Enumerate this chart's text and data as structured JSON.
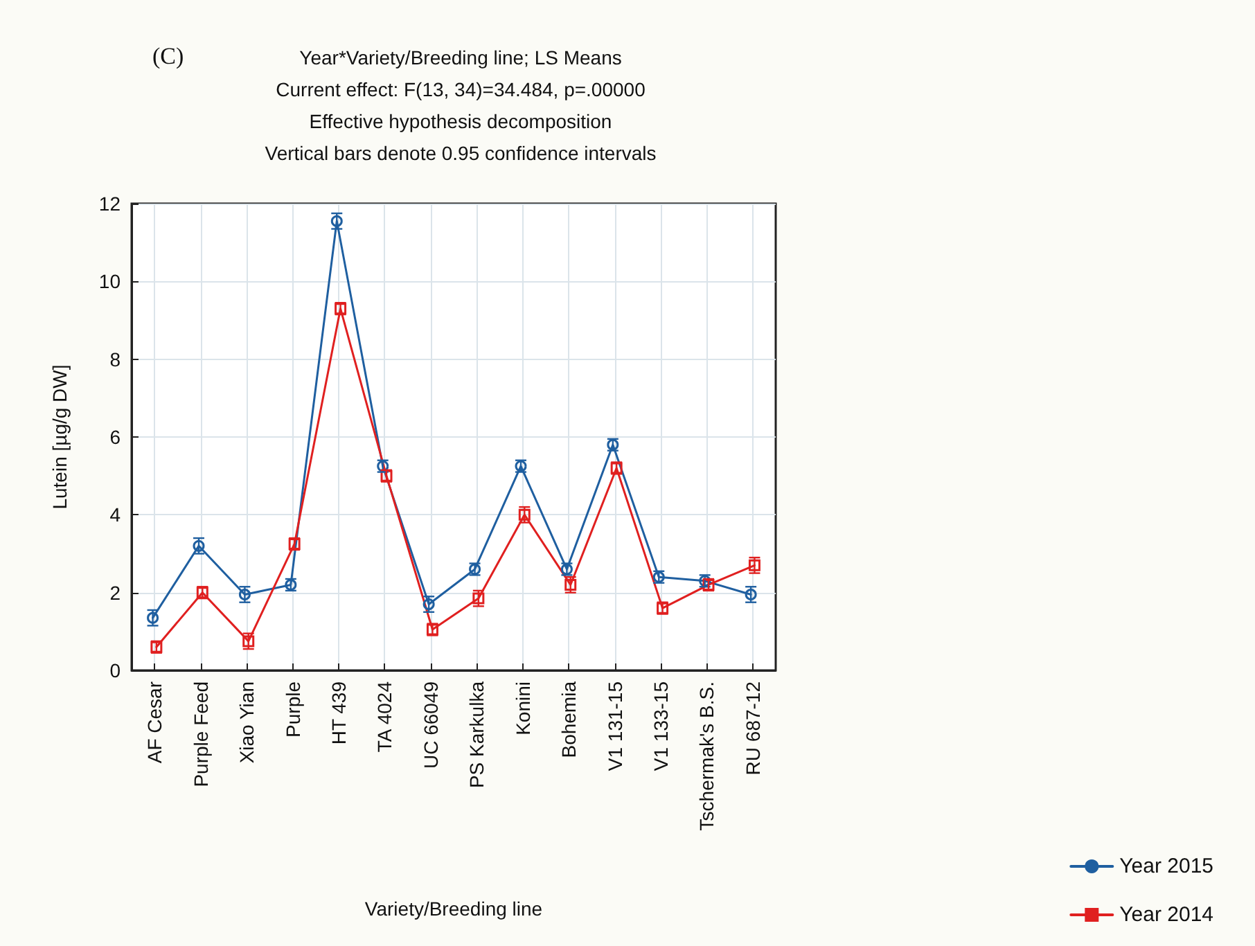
{
  "chart_data": {
    "type": "line",
    "title": "Year*Variety/Breeding line; LS Means",
    "subtitle": "Current effect: F(13, 34)=34.484, p=.00000\nEffective hypothesis decomposition\nVertical bars denote 0.95 confidence intervals",
    "xlabel": "Variety/Breeding line",
    "ylabel": "Lutein [µg/g DW]",
    "annotations": [
      "(C)"
    ],
    "categories": [
      "AF Cesar",
      "Purple Feed",
      "Xiao Yian",
      "Purple",
      "HT 439",
      "TA 4024",
      "UC 66049",
      "PS Karkulka",
      "Konini",
      "Bohemia",
      "V1 131-15",
      "V1 133-15",
      "Tschermak's B.S.",
      "RU 687-12"
    ],
    "series": [
      {
        "name": "Year 2015",
        "color": "#1f5fa0",
        "marker": "circle",
        "values": [
          1.35,
          3.2,
          1.95,
          2.2,
          11.55,
          5.25,
          1.7,
          2.6,
          5.25,
          2.6,
          5.8,
          2.4,
          2.3,
          1.95
        ],
        "errors": [
          0.2,
          0.2,
          0.2,
          0.15,
          0.2,
          0.15,
          0.2,
          0.15,
          0.15,
          0.15,
          0.15,
          0.15,
          0.15,
          0.2
        ]
      },
      {
        "name": "Year 2014",
        "color": "#e02020",
        "marker": "square",
        "values": [
          0.6,
          2.0,
          0.75,
          3.25,
          9.3,
          5.0,
          1.05,
          1.85,
          4.0,
          2.2,
          5.2,
          1.6,
          2.2,
          2.7
        ],
        "errors": [
          0.15,
          0.15,
          0.2,
          0.15,
          0.15,
          0.15,
          0.15,
          0.2,
          0.2,
          0.2,
          0.15,
          0.15,
          0.15,
          0.2
        ]
      }
    ],
    "ylim": [
      0,
      12
    ],
    "yticks": [
      0,
      2,
      4,
      6,
      8,
      10,
      12
    ],
    "grid": true,
    "legend": "bottom right",
    "line_style": "solid"
  }
}
